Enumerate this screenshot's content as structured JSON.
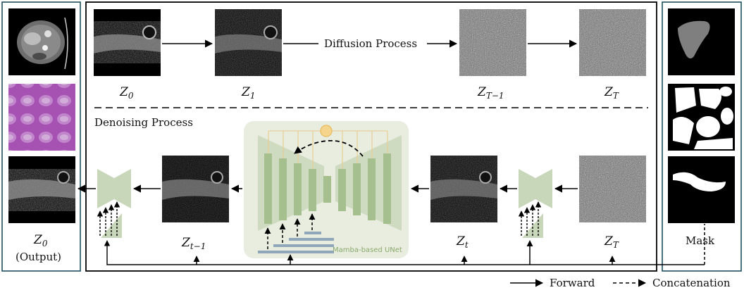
{
  "labels": {
    "diffusion_process": "Diffusion Process",
    "denoising_process": "Denoising Process",
    "unet": "Mamba-based UNet",
    "mask": "Mask",
    "output": "(Output)"
  },
  "variables": {
    "top": [
      {
        "main": "Z",
        "sub": "0"
      },
      {
        "main": "Z",
        "sub": "1"
      },
      {
        "main": "Z",
        "sub": "T−1"
      },
      {
        "main": "Z",
        "sub": "T"
      }
    ],
    "bottom": [
      {
        "main": "Z",
        "sub": "t−1"
      },
      {
        "main": "Z",
        "sub": "t"
      },
      {
        "main": "Z",
        "sub": "T"
      }
    ],
    "left_output": {
      "main": "Z",
      "sub": "0"
    }
  },
  "legend": {
    "forward": "Forward",
    "concatenation": "Concatenation"
  },
  "colors": {
    "frame": "#000000",
    "side_frame": "#1f4e5f",
    "unet_bg": "#e8ede0",
    "unet_bar": "#a6bf8e",
    "unet_trap": "#c8d6b9",
    "skip_line": "#e7cf98",
    "input_stair": "#8fa7b8",
    "histology": "#8e3a9c"
  },
  "icons": [
    "ct-scan-thumbnail",
    "histology-thumbnail",
    "ultrasound-thumbnail",
    "noise-thumbnail",
    "mask-thumbnail",
    "encoder-decoder-icon"
  ]
}
